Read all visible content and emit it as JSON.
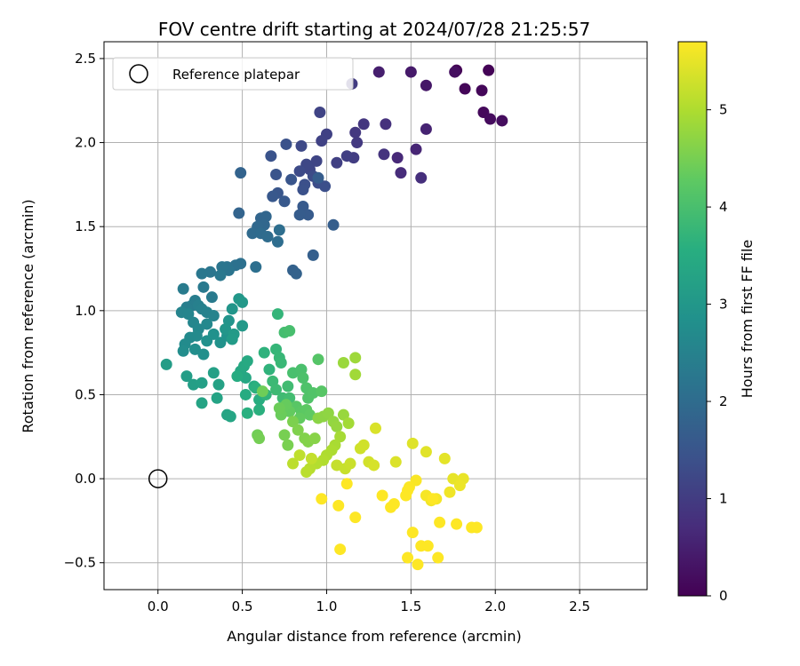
{
  "chart_data": {
    "type": "scatter",
    "title": "FOV centre drift starting at 2024/07/28 21:25:57",
    "xlabel": "Angular distance from reference (arcmin)",
    "ylabel": "Rotation from reference (arcmin)",
    "xlim": [
      -0.32,
      2.9
    ],
    "ylim": [
      -0.66,
      2.6
    ],
    "x_ticks": [
      0.0,
      0.5,
      1.0,
      1.5,
      2.0,
      2.5
    ],
    "x_tick_labels": [
      "0.0",
      "0.5",
      "1.0",
      "1.5",
      "2.0",
      "2.5"
    ],
    "y_ticks": [
      -0.5,
      0.0,
      0.5,
      1.0,
      1.5,
      2.0,
      2.5
    ],
    "y_tick_labels": [
      "−0.5",
      "0.0",
      "0.5",
      "1.0",
      "1.5",
      "2.0",
      "2.5"
    ],
    "grid": true,
    "legend": {
      "placement": "upper-left",
      "entries": [
        "Reference platepar"
      ]
    },
    "reference_point": {
      "x": 0.0,
      "y": 0.0,
      "label": "Reference platepar"
    },
    "colorbar": {
      "label": "Hours from first FF file",
      "range": [
        0,
        5.7
      ],
      "ticks": [
        0,
        1,
        2,
        3,
        4,
        5
      ],
      "tick_labels": [
        "0",
        "1",
        "2",
        "3",
        "4",
        "5"
      ],
      "colormap": "viridis"
    },
    "series": [
      {
        "points": [
          [
            1.77,
            2.43,
            0.02
          ],
          [
            1.96,
            2.43,
            0.04
          ],
          [
            1.82,
            2.32,
            0.08
          ],
          [
            1.92,
            2.31,
            0.1
          ],
          [
            1.93,
            2.18,
            0.13
          ],
          [
            1.97,
            2.14,
            0.16
          ],
          [
            2.04,
            2.13,
            0.19
          ],
          [
            1.76,
            2.42,
            0.22
          ],
          [
            1.59,
            2.34,
            0.35
          ],
          [
            1.5,
            2.42,
            0.4
          ],
          [
            1.31,
            2.42,
            0.48
          ],
          [
            1.59,
            2.08,
            0.55
          ],
          [
            1.53,
            1.96,
            0.6
          ],
          [
            1.42,
            1.91,
            0.65
          ],
          [
            1.44,
            1.82,
            0.7
          ],
          [
            1.56,
            1.79,
            0.75
          ],
          [
            1.35,
            2.11,
            0.8
          ],
          [
            1.34,
            1.93,
            0.85
          ],
          [
            1.22,
            2.11,
            0.88
          ],
          [
            1.17,
            2.06,
            0.92
          ],
          [
            1.18,
            2.0,
            0.95
          ],
          [
            1.15,
            2.35,
            0.98
          ],
          [
            1.16,
            1.91,
            1.02
          ],
          [
            1.12,
            1.92,
            1.05
          ],
          [
            1.06,
            1.88,
            1.08
          ],
          [
            1.0,
            2.05,
            1.1
          ],
          [
            0.97,
            2.01,
            1.12
          ],
          [
            0.96,
            2.18,
            1.15
          ],
          [
            0.94,
            1.89,
            1.18
          ],
          [
            0.9,
            1.84,
            1.2
          ],
          [
            0.88,
            1.87,
            1.22
          ],
          [
            0.85,
            1.98,
            1.25
          ],
          [
            0.84,
            1.83,
            1.28
          ],
          [
            0.92,
            1.8,
            1.3
          ],
          [
            0.95,
            1.76,
            1.33
          ],
          [
            0.99,
            1.74,
            1.36
          ],
          [
            0.87,
            1.75,
            1.38
          ],
          [
            0.86,
            1.72,
            1.4
          ],
          [
            0.76,
            1.99,
            1.43
          ],
          [
            0.67,
            1.92,
            1.45
          ],
          [
            0.7,
            1.81,
            1.48
          ],
          [
            0.79,
            1.78,
            1.5
          ],
          [
            0.71,
            1.7,
            1.52
          ],
          [
            0.68,
            1.68,
            1.55
          ],
          [
            0.75,
            1.65,
            1.58
          ],
          [
            0.86,
            1.62,
            1.6
          ],
          [
            0.89,
            1.57,
            1.62
          ],
          [
            0.84,
            1.57,
            1.65
          ],
          [
            0.95,
            1.79,
            1.68
          ],
          [
            1.04,
            1.51,
            1.7
          ],
          [
            0.92,
            1.33,
            1.72
          ],
          [
            0.8,
            1.24,
            1.75
          ],
          [
            0.82,
            1.22,
            1.78
          ],
          [
            0.49,
            1.82,
            1.8
          ],
          [
            0.48,
            1.58,
            1.82
          ],
          [
            0.61,
            1.55,
            1.85
          ],
          [
            0.64,
            1.56,
            1.88
          ],
          [
            0.63,
            1.51,
            1.9
          ],
          [
            0.59,
            1.5,
            1.92
          ],
          [
            0.56,
            1.46,
            1.95
          ],
          [
            0.61,
            1.46,
            1.98
          ],
          [
            0.65,
            1.44,
            2.0
          ],
          [
            0.71,
            1.41,
            2.02
          ],
          [
            0.72,
            1.48,
            2.05
          ],
          [
            0.58,
            1.26,
            2.08
          ],
          [
            0.49,
            1.28,
            2.1
          ],
          [
            0.46,
            1.27,
            2.12
          ],
          [
            0.41,
            1.26,
            2.15
          ],
          [
            0.42,
            1.24,
            2.18
          ],
          [
            0.38,
            1.26,
            2.2
          ],
          [
            0.31,
            1.23,
            2.22
          ],
          [
            0.26,
            1.22,
            2.25
          ],
          [
            0.37,
            1.21,
            2.28
          ],
          [
            0.27,
            1.14,
            2.3
          ],
          [
            0.32,
            1.08,
            2.32
          ],
          [
            0.15,
            1.13,
            2.35
          ],
          [
            0.22,
            1.06,
            2.38
          ],
          [
            0.2,
            1.03,
            2.4
          ],
          [
            0.17,
            1.02,
            2.42
          ],
          [
            0.24,
            1.03,
            2.45
          ],
          [
            0.26,
            1.01,
            2.48
          ],
          [
            0.29,
            0.99,
            2.5
          ],
          [
            0.33,
            0.97,
            2.52
          ],
          [
            0.14,
            0.99,
            2.55
          ],
          [
            0.18,
            0.98,
            2.58
          ],
          [
            0.21,
            0.93,
            2.6
          ],
          [
            0.24,
            0.89,
            2.62
          ],
          [
            0.29,
            0.92,
            2.65
          ],
          [
            0.23,
            0.85,
            2.68
          ],
          [
            0.19,
            0.84,
            2.7
          ],
          [
            0.16,
            0.8,
            2.72
          ],
          [
            0.15,
            0.76,
            2.75
          ],
          [
            0.22,
            0.77,
            2.78
          ],
          [
            0.27,
            0.74,
            2.8
          ],
          [
            0.29,
            0.82,
            2.82
          ],
          [
            0.33,
            0.86,
            2.85
          ],
          [
            0.37,
            0.81,
            2.88
          ],
          [
            0.41,
            0.85,
            2.9
          ],
          [
            0.42,
            0.94,
            2.92
          ],
          [
            0.44,
            1.01,
            2.95
          ],
          [
            0.4,
            0.89,
            2.98
          ],
          [
            0.48,
            1.07,
            3.0
          ],
          [
            0.5,
            1.05,
            3.02
          ],
          [
            0.5,
            0.91,
            3.05
          ],
          [
            0.45,
            0.86,
            3.08
          ],
          [
            0.44,
            0.83,
            3.1
          ],
          [
            0.05,
            0.68,
            3.12
          ],
          [
            0.17,
            0.61,
            3.15
          ],
          [
            0.21,
            0.56,
            3.18
          ],
          [
            0.26,
            0.57,
            3.2
          ],
          [
            0.33,
            0.63,
            3.22
          ],
          [
            0.36,
            0.56,
            3.25
          ],
          [
            0.35,
            0.48,
            3.28
          ],
          [
            0.26,
            0.45,
            3.3
          ],
          [
            0.41,
            0.38,
            3.32
          ],
          [
            0.43,
            0.37,
            3.35
          ],
          [
            0.52,
            0.6,
            3.38
          ],
          [
            0.49,
            0.64,
            3.4
          ],
          [
            0.51,
            0.67,
            3.42
          ],
          [
            0.53,
            0.7,
            3.45
          ],
          [
            0.47,
            0.61,
            3.48
          ],
          [
            0.52,
            0.5,
            3.5
          ],
          [
            0.57,
            0.55,
            3.52
          ],
          [
            0.6,
            0.47,
            3.55
          ],
          [
            0.53,
            0.39,
            3.58
          ],
          [
            0.6,
            0.41,
            3.6
          ],
          [
            0.58,
            0.54,
            3.62
          ],
          [
            0.63,
            0.75,
            3.65
          ],
          [
            0.66,
            0.65,
            3.68
          ],
          [
            0.64,
            0.5,
            3.7
          ],
          [
            0.71,
            0.98,
            3.72
          ],
          [
            0.7,
            0.77,
            3.75
          ],
          [
            0.72,
            0.72,
            3.78
          ],
          [
            0.73,
            0.69,
            3.8
          ],
          [
            0.68,
            0.58,
            3.82
          ],
          [
            0.7,
            0.53,
            3.85
          ],
          [
            0.74,
            0.48,
            3.88
          ],
          [
            0.77,
            0.55,
            3.9
          ],
          [
            0.78,
            0.48,
            3.92
          ],
          [
            0.75,
            0.87,
            3.95
          ],
          [
            0.78,
            0.88,
            3.98
          ],
          [
            0.8,
            0.63,
            4.0
          ],
          [
            0.85,
            0.65,
            4.02
          ],
          [
            0.86,
            0.6,
            4.05
          ],
          [
            0.88,
            0.54,
            4.08
          ],
          [
            0.89,
            0.48,
            4.1
          ],
          [
            0.92,
            0.51,
            4.12
          ],
          [
            0.95,
            0.71,
            4.15
          ],
          [
            0.97,
            0.52,
            4.18
          ],
          [
            0.82,
            0.43,
            4.2
          ],
          [
            0.85,
            0.4,
            4.22
          ],
          [
            0.88,
            0.41,
            4.25
          ],
          [
            0.9,
            0.38,
            4.28
          ],
          [
            0.84,
            0.36,
            4.3
          ],
          [
            0.78,
            0.4,
            4.32
          ],
          [
            0.76,
            0.44,
            4.35
          ],
          [
            0.73,
            0.38,
            4.38
          ],
          [
            0.72,
            0.42,
            4.4
          ],
          [
            0.62,
            0.52,
            4.42
          ],
          [
            0.59,
            0.26,
            4.45
          ],
          [
            0.6,
            0.24,
            4.48
          ],
          [
            0.75,
            0.26,
            4.5
          ],
          [
            0.77,
            0.2,
            4.52
          ],
          [
            0.8,
            0.34,
            4.55
          ],
          [
            0.83,
            0.29,
            4.58
          ],
          [
            0.87,
            0.24,
            4.6
          ],
          [
            0.89,
            0.22,
            4.62
          ],
          [
            0.93,
            0.24,
            4.65
          ],
          [
            0.95,
            0.36,
            4.68
          ],
          [
            0.98,
            0.37,
            4.7
          ],
          [
            1.01,
            0.39,
            4.72
          ],
          [
            1.04,
            0.34,
            4.75
          ],
          [
            1.06,
            0.31,
            4.78
          ],
          [
            1.1,
            0.38,
            4.8
          ],
          [
            1.1,
            0.69,
            4.82
          ],
          [
            1.17,
            0.72,
            4.85
          ],
          [
            1.17,
            0.62,
            4.88
          ],
          [
            1.13,
            0.33,
            4.9
          ],
          [
            1.08,
            0.25,
            4.92
          ],
          [
            1.05,
            0.2,
            4.95
          ],
          [
            1.03,
            0.17,
            4.98
          ],
          [
            1.0,
            0.14,
            5.0
          ],
          [
            0.98,
            0.11,
            5.02
          ],
          [
            0.94,
            0.09,
            5.05
          ],
          [
            0.9,
            0.06,
            5.08
          ],
          [
            0.88,
            0.04,
            5.1
          ],
          [
            0.8,
            0.09,
            5.12
          ],
          [
            0.84,
            0.14,
            5.15
          ],
          [
            0.91,
            0.12,
            5.18
          ],
          [
            1.06,
            0.08,
            5.2
          ],
          [
            1.11,
            0.06,
            5.22
          ],
          [
            1.14,
            0.09,
            5.25
          ],
          [
            1.2,
            0.18,
            5.28
          ],
          [
            1.22,
            0.2,
            5.3
          ],
          [
            1.25,
            0.1,
            5.32
          ],
          [
            1.28,
            0.08,
            5.35
          ],
          [
            1.29,
            0.3,
            5.38
          ],
          [
            1.41,
            0.1,
            5.4
          ],
          [
            1.51,
            0.21,
            5.42
          ],
          [
            1.59,
            0.16,
            5.45
          ],
          [
            1.7,
            0.12,
            5.48
          ],
          [
            1.75,
            0.0,
            5.5
          ],
          [
            1.81,
            0.0,
            5.52
          ],
          [
            1.79,
            -0.04,
            5.55
          ],
          [
            1.73,
            -0.08,
            5.58
          ],
          [
            1.62,
            -0.13,
            5.6
          ],
          [
            1.65,
            -0.12,
            5.62
          ],
          [
            1.59,
            -0.1,
            5.64
          ],
          [
            1.53,
            -0.01,
            5.66
          ],
          [
            1.49,
            -0.05,
            5.68
          ],
          [
            1.48,
            -0.07,
            5.7
          ],
          [
            1.47,
            -0.1,
            5.72
          ],
          [
            1.4,
            -0.15,
            5.74
          ],
          [
            1.38,
            -0.17,
            5.76
          ],
          [
            1.33,
            -0.1,
            5.78
          ],
          [
            1.12,
            -0.03,
            5.8
          ],
          [
            1.17,
            -0.23,
            5.82
          ],
          [
            1.07,
            -0.16,
            5.84
          ],
          [
            0.97,
            -0.12,
            5.86
          ],
          [
            1.08,
            -0.42,
            5.88
          ],
          [
            1.51,
            -0.32,
            5.9
          ],
          [
            1.56,
            -0.4,
            5.92
          ],
          [
            1.6,
            -0.4,
            5.94
          ],
          [
            1.48,
            -0.47,
            5.96
          ],
          [
            1.54,
            -0.51,
            5.98
          ],
          [
            1.66,
            -0.47,
            6.0
          ],
          [
            1.67,
            -0.26,
            6.02
          ],
          [
            1.77,
            -0.27,
            6.04
          ],
          [
            1.86,
            -0.29,
            6.06
          ],
          [
            1.89,
            -0.29,
            6.08
          ],
          [
            1.63,
            -0.12,
            6.1
          ]
        ]
      }
    ]
  }
}
